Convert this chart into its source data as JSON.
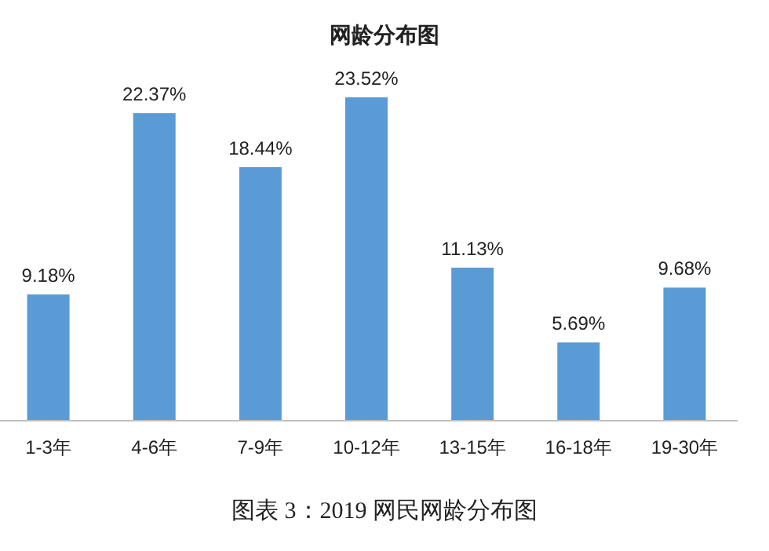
{
  "chart_data": {
    "type": "bar",
    "title": "网龄分布图",
    "categories": [
      "1-3年",
      "4-6年",
      "7-9年",
      "10-12年",
      "13-15年",
      "16-18年",
      "19-30年"
    ],
    "values": [
      9.18,
      22.37,
      18.44,
      23.52,
      11.13,
      5.69,
      9.68
    ],
    "value_labels": [
      "9.18%",
      "22.37%",
      "18.44%",
      "23.52%",
      "11.13%",
      "5.69%",
      "9.68%"
    ],
    "color": "#5b9bd5",
    "annotations": [
      "图表 3：2019 网民网龄分布图"
    ]
  }
}
